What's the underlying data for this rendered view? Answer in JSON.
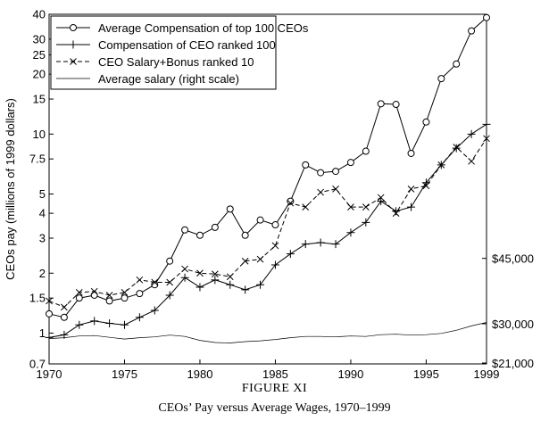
{
  "figure": {
    "label": "FIGURE XI",
    "caption": "CEOs’ Pay versus Average Wages, 1970–1999"
  },
  "chart_data": {
    "type": "line",
    "x": [
      1970,
      1971,
      1972,
      1973,
      1974,
      1975,
      1976,
      1977,
      1978,
      1979,
      1980,
      1981,
      1982,
      1983,
      1984,
      1985,
      1986,
      1987,
      1988,
      1989,
      1990,
      1991,
      1992,
      1993,
      1994,
      1995,
      1996,
      1997,
      1998,
      1999
    ],
    "xlim": [
      1970,
      1999
    ],
    "xticks": [
      1970,
      1975,
      1980,
      1985,
      1990,
      1995,
      1999
    ],
    "ylabel": "CEOs pay (millions of 1999 dollars)",
    "yscale": "log",
    "ylim": [
      0.7,
      40
    ],
    "yticks": [
      0.7,
      1,
      1.5,
      2,
      3,
      4,
      5,
      7.5,
      10,
      15,
      20,
      25,
      30,
      40
    ],
    "ytick_labels": [
      "0.7",
      "1",
      "1.5",
      "2",
      "3",
      "4",
      "5",
      "7.5",
      "10",
      "15",
      "20",
      "25",
      "30",
      "40"
    ],
    "y2ticks": [
      {
        "label": "$45,000",
        "value": 45000
      },
      {
        "label": "$30,000",
        "value": 30000
      },
      {
        "label": "$21,000",
        "value": 21000
      }
    ],
    "legend_position": "top-left",
    "grid": false,
    "series": [
      {
        "name": "Average Compensation of top 100 CEOs",
        "marker": "circle",
        "dash": "solid",
        "values": [
          1.25,
          1.2,
          1.5,
          1.55,
          1.45,
          1.5,
          1.58,
          1.75,
          2.3,
          3.3,
          3.1,
          3.4,
          4.2,
          3.1,
          3.7,
          3.5,
          4.6,
          7.0,
          6.4,
          6.5,
          7.2,
          8.2,
          14.2,
          14.1,
          8.0,
          11.5,
          19.0,
          22.5,
          33.0,
          38.5
        ]
      },
      {
        "name": "Compensation of CEO ranked 100",
        "marker": "plus",
        "dash": "solid",
        "values": [
          0.95,
          0.98,
          1.1,
          1.15,
          1.12,
          1.1,
          1.2,
          1.3,
          1.55,
          1.9,
          1.7,
          1.85,
          1.75,
          1.65,
          1.75,
          2.2,
          2.5,
          2.8,
          2.85,
          2.8,
          3.2,
          3.6,
          4.6,
          4.1,
          4.3,
          5.7,
          7.0,
          8.5,
          10.0,
          11.2
        ]
      },
      {
        "name": "CEO Salary+Bonus ranked 10",
        "marker": "x",
        "dash": "dashed",
        "values": [
          1.45,
          1.35,
          1.6,
          1.62,
          1.55,
          1.6,
          1.85,
          1.8,
          1.8,
          2.1,
          2.0,
          1.98,
          1.92,
          2.3,
          2.35,
          2.75,
          4.5,
          4.3,
          5.1,
          5.3,
          4.3,
          4.3,
          4.8,
          4.0,
          5.3,
          5.5,
          7.0,
          8.6,
          7.3,
          9.5
        ]
      },
      {
        "name": "Average salary (right scale)",
        "marker": "none",
        "dash": "solid",
        "axis": "right",
        "values": [
          26600,
          26800,
          27200,
          27300,
          26900,
          26500,
          26800,
          27000,
          27400,
          27100,
          26200,
          25700,
          25600,
          25900,
          26100,
          26400,
          26800,
          27100,
          27100,
          27000,
          27200,
          27100,
          27500,
          27600,
          27400,
          27500,
          27800,
          28500,
          29500,
          30300
        ]
      }
    ]
  }
}
